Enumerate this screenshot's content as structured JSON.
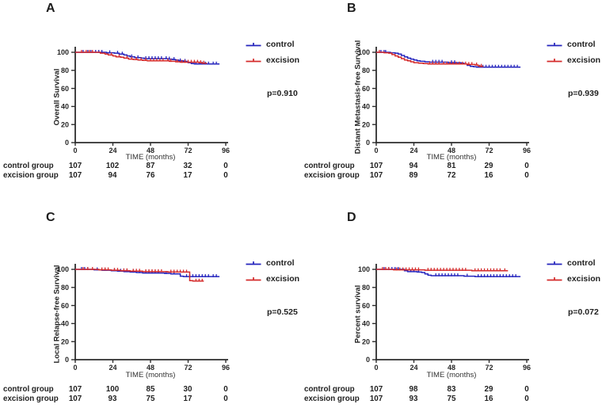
{
  "figure": {
    "layout": "2x2 Kaplan-Meier survival panels",
    "axis_color": "#2d2d2d",
    "legend_position": "right"
  },
  "chart_data": [
    {
      "type": "line",
      "subtype": "kaplan-meier",
      "letter": "A",
      "y_label": "Overall Survival",
      "x_label": "TIME (months)",
      "p_value": "p=0.910",
      "x_ticks": [
        0,
        24,
        48,
        72,
        96
      ],
      "y_ticks": [
        0,
        20,
        40,
        60,
        80,
        100
      ],
      "xlim": [
        0,
        96
      ],
      "ylim": [
        0,
        100
      ],
      "series": [
        {
          "name": "control",
          "color": "#2424bd",
          "points": [
            [
              0,
              100
            ],
            [
              19,
              100
            ],
            [
              20,
              99.5
            ],
            [
              25,
              99
            ],
            [
              28,
              98
            ],
            [
              31,
              97
            ],
            [
              33,
              96
            ],
            [
              35,
              95
            ],
            [
              38,
              94
            ],
            [
              42,
              93.5
            ],
            [
              44,
              93
            ],
            [
              57,
              93
            ],
            [
              59,
              92.5
            ],
            [
              62,
              92
            ],
            [
              64,
              91.5
            ],
            [
              66,
              90.5
            ],
            [
              69,
              90
            ],
            [
              71,
              89.5
            ],
            [
              72,
              88.5
            ],
            [
              74,
              87.5
            ],
            [
              76,
              87
            ],
            [
              92,
              87
            ]
          ],
          "censor": [
            5,
            8,
            10,
            13,
            15,
            17,
            22,
            27,
            30,
            36,
            40,
            45,
            47,
            49,
            51,
            53,
            55,
            58,
            60,
            63,
            67,
            70,
            77,
            79,
            81,
            83,
            85,
            88,
            90
          ]
        },
        {
          "name": "excision",
          "color": "#d42a2a",
          "points": [
            [
              0,
              100
            ],
            [
              15,
              100
            ],
            [
              16,
              99
            ],
            [
              19,
              98
            ],
            [
              21,
              97
            ],
            [
              24,
              96
            ],
            [
              26,
              95
            ],
            [
              29,
              94.5
            ],
            [
              31,
              93.5
            ],
            [
              34,
              92.5
            ],
            [
              37,
              92
            ],
            [
              40,
              91.5
            ],
            [
              43,
              91
            ],
            [
              46,
              90.5
            ],
            [
              58,
              90.5
            ],
            [
              60,
              90
            ],
            [
              64,
              89.5
            ],
            [
              67,
              89
            ],
            [
              77,
              89
            ],
            [
              79,
              88.5
            ],
            [
              81,
              88
            ],
            [
              84,
              88
            ]
          ],
          "censor": [
            4,
            7,
            9,
            11,
            23,
            28,
            33,
            36,
            39,
            42,
            45,
            48,
            50,
            52,
            54,
            56,
            59,
            61,
            65,
            68,
            70,
            72,
            74,
            76,
            78,
            80,
            82
          ]
        }
      ],
      "risk": [
        {
          "label": "control group",
          "counts": [
            107,
            102,
            87,
            32,
            0
          ]
        },
        {
          "label": "excision group",
          "counts": [
            107,
            94,
            76,
            17,
            0
          ]
        }
      ]
    },
    {
      "type": "line",
      "subtype": "kaplan-meier",
      "letter": "B",
      "y_label": "Distant Metastasis-free Survival",
      "x_label": "TIME (months)",
      "p_value": "p=0.939",
      "x_ticks": [
        0,
        24,
        48,
        72,
        96
      ],
      "y_ticks": [
        0,
        20,
        40,
        60,
        80,
        100
      ],
      "xlim": [
        0,
        96
      ],
      "ylim": [
        0,
        100
      ],
      "series": [
        {
          "name": "control",
          "color": "#2424bd",
          "points": [
            [
              0,
              100
            ],
            [
              8,
              100
            ],
            [
              9,
              99.5
            ],
            [
              12,
              99
            ],
            [
              14,
              98
            ],
            [
              16,
              96.5
            ],
            [
              18,
              95
            ],
            [
              20,
              93.5
            ],
            [
              22,
              92.5
            ],
            [
              24,
              91.5
            ],
            [
              26,
              90.5
            ],
            [
              28,
              90
            ],
            [
              31,
              89.5
            ],
            [
              34,
              89
            ],
            [
              44,
              89
            ],
            [
              46,
              88.5
            ],
            [
              52,
              88.5
            ],
            [
              54,
              88
            ],
            [
              56,
              87
            ],
            [
              58,
              85.5
            ],
            [
              60,
              84.5
            ],
            [
              62,
              84
            ],
            [
              64,
              83.5
            ],
            [
              92,
              83.5
            ]
          ],
          "censor": [
            3,
            5,
            6,
            36,
            38,
            40,
            42,
            48,
            50,
            66,
            68,
            70,
            72,
            74,
            76,
            78,
            80,
            82,
            84,
            86,
            88,
            90
          ]
        },
        {
          "name": "excision",
          "color": "#d42a2a",
          "points": [
            [
              0,
              100
            ],
            [
              4,
              100
            ],
            [
              5,
              99.5
            ],
            [
              8,
              99
            ],
            [
              10,
              97.5
            ],
            [
              12,
              96
            ],
            [
              14,
              94.5
            ],
            [
              16,
              93
            ],
            [
              18,
              91.5
            ],
            [
              20,
              90.5
            ],
            [
              22,
              89.5
            ],
            [
              24,
              88.5
            ],
            [
              27,
              88
            ],
            [
              30,
              87.5
            ],
            [
              33,
              87
            ],
            [
              56,
              87
            ],
            [
              58,
              86.5
            ],
            [
              62,
              86.5
            ],
            [
              63,
              86
            ],
            [
              65,
              85
            ],
            [
              66,
              84.5
            ],
            [
              68,
              84
            ]
          ],
          "censor": [
            2,
            34,
            36,
            38,
            40,
            43,
            45,
            47,
            49,
            51,
            53,
            55,
            57,
            59,
            61,
            64,
            67
          ]
        }
      ],
      "risk": [
        {
          "label": "control group",
          "counts": [
            107,
            94,
            81,
            29,
            0
          ]
        },
        {
          "label": "excision group",
          "counts": [
            107,
            89,
            72,
            16,
            0
          ]
        }
      ]
    },
    {
      "type": "line",
      "subtype": "kaplan-meier",
      "letter": "C",
      "y_label": "Local Relapse-free Survival",
      "x_label": "TIME (months)",
      "p_value": "p=0.525",
      "x_ticks": [
        0,
        24,
        48,
        72,
        96
      ],
      "y_ticks": [
        0,
        20,
        40,
        60,
        80,
        100
      ],
      "xlim": [
        0,
        96
      ],
      "ylim": [
        0,
        100
      ],
      "series": [
        {
          "name": "control",
          "color": "#2424bd",
          "points": [
            [
              0,
              100
            ],
            [
              10,
              100
            ],
            [
              12,
              99.5
            ],
            [
              17,
              99
            ],
            [
              23,
              98.5
            ],
            [
              27,
              98
            ],
            [
              31,
              97.5
            ],
            [
              35,
              97
            ],
            [
              39,
              96.5
            ],
            [
              43,
              96
            ],
            [
              55,
              96
            ],
            [
              57,
              95.5
            ],
            [
              61,
              95
            ],
            [
              66,
              95
            ],
            [
              67,
              92.5
            ],
            [
              69,
              92
            ],
            [
              92,
              92
            ]
          ],
          "censor": [
            4,
            6,
            8,
            14,
            19,
            25,
            29,
            33,
            37,
            41,
            45,
            47,
            49,
            51,
            53,
            58,
            63,
            71,
            73,
            75,
            77,
            79,
            81,
            83,
            85,
            88,
            90
          ]
        },
        {
          "name": "excision",
          "color": "#d42a2a",
          "points": [
            [
              0,
              100
            ],
            [
              14,
              100
            ],
            [
              15,
              99.5
            ],
            [
              23,
              99
            ],
            [
              29,
              98.5
            ],
            [
              35,
              98
            ],
            [
              43,
              97.5
            ],
            [
              57,
              97.5
            ],
            [
              59,
              97
            ],
            [
              72,
              97
            ],
            [
              73,
              87.5
            ],
            [
              75,
              87
            ],
            [
              82,
              87
            ]
          ],
          "censor": [
            5,
            8,
            11,
            17,
            19,
            21,
            25,
            27,
            31,
            33,
            37,
            39,
            41,
            45,
            47,
            49,
            51,
            53,
            55,
            61,
            63,
            65,
            67,
            69,
            71,
            77,
            79,
            81
          ]
        }
      ],
      "risk": [
        {
          "label": "control group",
          "counts": [
            107,
            100,
            85,
            30,
            0
          ]
        },
        {
          "label": "excision group",
          "counts": [
            107,
            93,
            75,
            17,
            0
          ]
        }
      ]
    },
    {
      "type": "line",
      "subtype": "kaplan-meier",
      "letter": "D",
      "y_label": "Percent survival",
      "x_label": "TIME (months)",
      "p_value": "p=0.072",
      "x_ticks": [
        0,
        24,
        48,
        72,
        96
      ],
      "y_ticks": [
        0,
        20,
        40,
        60,
        80,
        100
      ],
      "xlim": [
        0,
        96
      ],
      "ylim": [
        0,
        100
      ],
      "series": [
        {
          "name": "control",
          "color": "#2424bd",
          "points": [
            [
              0,
              100
            ],
            [
              17,
              100
            ],
            [
              18,
              98.5
            ],
            [
              20,
              97.5
            ],
            [
              26,
              97
            ],
            [
              29,
              96.5
            ],
            [
              31,
              95
            ],
            [
              33,
              93.5
            ],
            [
              35,
              93
            ],
            [
              54,
              93
            ],
            [
              56,
              92.5
            ],
            [
              61,
              92.5
            ],
            [
              63,
              92
            ],
            [
              92,
              92
            ]
          ],
          "censor": [
            5,
            8,
            10,
            12,
            14,
            22,
            24,
            27,
            38,
            40,
            42,
            44,
            46,
            48,
            50,
            52,
            58,
            65,
            67,
            69,
            71,
            73,
            75,
            77,
            79,
            81,
            83,
            85,
            87,
            89
          ]
        },
        {
          "name": "excision",
          "color": "#d42a2a",
          "points": [
            [
              0,
              100
            ],
            [
              10,
              100
            ],
            [
              11,
              99.5
            ],
            [
              29,
              99.5
            ],
            [
              31,
              99
            ],
            [
              59,
              99
            ],
            [
              61,
              98.5
            ],
            [
              84,
              98.5
            ]
          ],
          "censor": [
            4,
            6,
            8,
            13,
            15,
            17,
            19,
            21,
            23,
            25,
            27,
            33,
            35,
            37,
            39,
            41,
            43,
            45,
            47,
            49,
            51,
            53,
            55,
            57,
            63,
            65,
            67,
            69,
            71,
            73,
            75,
            77,
            79,
            82
          ]
        }
      ],
      "risk": [
        {
          "label": "control group",
          "counts": [
            107,
            98,
            83,
            29,
            0
          ]
        },
        {
          "label": "excision group",
          "counts": [
            107,
            93,
            75,
            16,
            0
          ]
        }
      ]
    }
  ]
}
